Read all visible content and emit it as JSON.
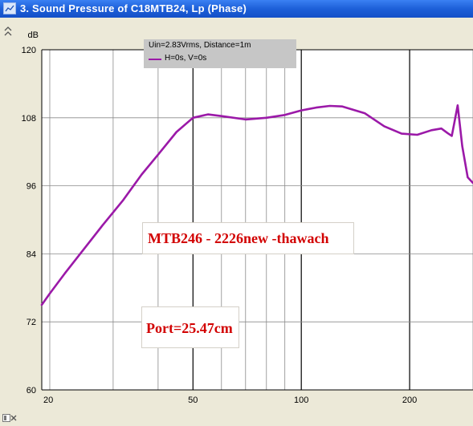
{
  "window": {
    "title": "3. Sound Pressure of C18MTB24, Lp (Phase)",
    "icon": "chart-window-icon"
  },
  "side_icons": [
    "expand-arrows-icon",
    "panel-toggle-icon",
    "close-icon"
  ],
  "legend": {
    "condition": "Uin=2.83Vrms, Distance=1m",
    "series_label": "H=0s, V=0s",
    "series_color": "#9b19a8"
  },
  "annotations": {
    "model": "MTB246 - 2226new -thawach",
    "port": "Port=25.47cm",
    "color": "#d20000"
  },
  "chart_data": {
    "type": "line",
    "title": "",
    "xlabel": "",
    "ylabel": "dB",
    "xscale": "log",
    "xlim": [
      19,
      300
    ],
    "ylim": [
      60,
      120
    ],
    "yticks": [
      60,
      72,
      84,
      96,
      108,
      120
    ],
    "xticks": [
      20,
      50,
      100,
      200
    ],
    "grid": true,
    "series": [
      {
        "name": "H=0s, V=0s",
        "color": "#9b19a8",
        "x": [
          19,
          20,
          22,
          25,
          28,
          32,
          36,
          40,
          45,
          50,
          55,
          60,
          70,
          80,
          90,
          100,
          110,
          120,
          130,
          150,
          170,
          190,
          210,
          230,
          245,
          255,
          262,
          266,
          272,
          280,
          290,
          300
        ],
        "y": [
          75,
          77,
          80.5,
          85,
          89,
          93.5,
          98,
          101.5,
          105.5,
          108,
          108.6,
          108.3,
          107.7,
          108,
          108.5,
          109.3,
          109.8,
          110.1,
          110,
          108.8,
          106.5,
          105.2,
          105,
          105.8,
          106.1,
          105.3,
          104.8,
          107,
          110.2,
          103,
          97.5,
          96.5
        ]
      }
    ]
  }
}
